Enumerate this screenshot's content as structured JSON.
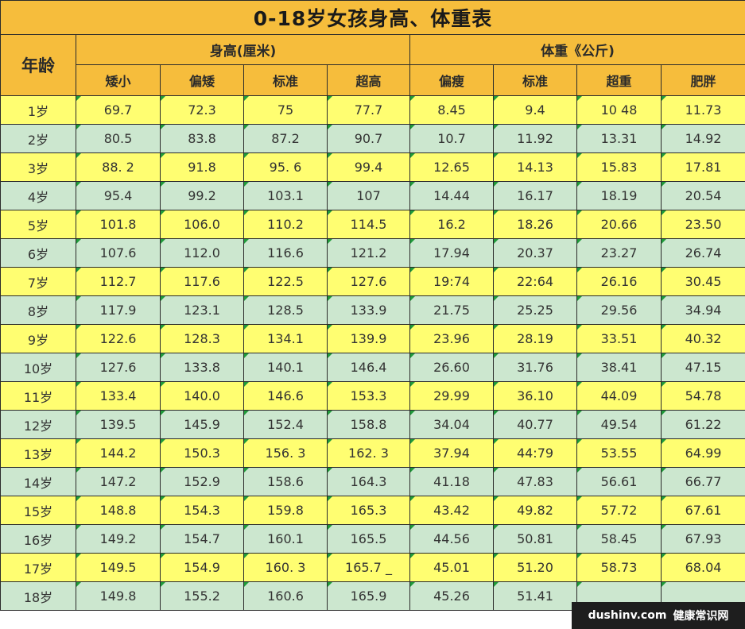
{
  "title": "0-18岁女孩身高、体重表",
  "header": {
    "age_label": "年龄",
    "height_group": "身高(厘米)",
    "weight_group": "体重《公斤)",
    "height_cols": [
      "矮小",
      "偏矮",
      "标准",
      "超高"
    ],
    "weight_cols": [
      "偏瘦",
      "标准",
      "超重",
      "肥胖"
    ]
  },
  "rows": [
    {
      "age": "1岁",
      "h": [
        "69.7",
        "72.3",
        "75",
        "77.7"
      ],
      "w": [
        "8.45",
        "9.4",
        "10 48",
        "11.73"
      ]
    },
    {
      "age": "2岁",
      "h": [
        "80.5",
        "83.8",
        "87.2",
        "90.7"
      ],
      "w": [
        "10.7",
        "11.92",
        "13.31",
        "14.92"
      ]
    },
    {
      "age": "3岁",
      "h": [
        "88. 2",
        "91.8",
        "95. 6",
        "99.4"
      ],
      "w": [
        "12.65",
        "14.13",
        "15.83",
        "17.81"
      ]
    },
    {
      "age": "4岁",
      "h": [
        "95.4",
        "99.2",
        "103.1",
        "107"
      ],
      "w": [
        "14.44",
        "16.17",
        "18.19",
        "20.54"
      ]
    },
    {
      "age": "5岁",
      "h": [
        "101.8",
        "106.0",
        "110.2",
        "114.5"
      ],
      "w": [
        "16.2",
        "18.26",
        "20.66",
        "23.50"
      ]
    },
    {
      "age": "6岁",
      "h": [
        "107.6",
        "112.0",
        "116.6",
        "121.2"
      ],
      "w": [
        "17.94",
        "20.37",
        "23.27",
        "26.74"
      ]
    },
    {
      "age": "7岁",
      "h": [
        "112.7",
        "117.6",
        "122.5",
        "127.6"
      ],
      "w": [
        "19:74",
        "22:64",
        "26.16",
        "30.45"
      ]
    },
    {
      "age": "8岁",
      "h": [
        "117.9",
        "123.1",
        "128.5",
        "133.9"
      ],
      "w": [
        "21.75",
        "25.25",
        "29.56",
        "34.94"
      ]
    },
    {
      "age": "9岁",
      "h": [
        "122.6",
        "128.3",
        "134.1",
        "139.9"
      ],
      "w": [
        "23.96",
        "28.19",
        "33.51",
        "40.32"
      ]
    },
    {
      "age": "10岁",
      "h": [
        "127.6",
        "133.8",
        "140.1",
        "146.4"
      ],
      "w": [
        "26.60",
        "31.76",
        "38.41",
        "47.15"
      ]
    },
    {
      "age": "11岁",
      "h": [
        "133.4",
        "140.0",
        "146.6",
        "153.3"
      ],
      "w": [
        "29.99",
        "36.10",
        "44.09",
        "54.78"
      ]
    },
    {
      "age": "12岁",
      "h": [
        "139.5",
        "145.9",
        "152.4",
        "158.8"
      ],
      "w": [
        "34.04",
        "40.77",
        "49.54",
        "61.22"
      ]
    },
    {
      "age": "13岁",
      "h": [
        "144.2",
        "150.3",
        "156. 3",
        "162. 3"
      ],
      "w": [
        "37.94",
        "44:79",
        "53.55",
        "64.99"
      ]
    },
    {
      "age": "14岁",
      "h": [
        "147.2",
        "152.9",
        "158.6",
        "164.3"
      ],
      "w": [
        "41.18",
        "47.83",
        "56.61",
        "66.77"
      ]
    },
    {
      "age": "15岁",
      "h": [
        "148.8",
        "154.3",
        "159.8",
        "165.3"
      ],
      "w": [
        "43.42",
        "49.82",
        "57.72",
        "67.61"
      ]
    },
    {
      "age": "16岁",
      "h": [
        "149.2",
        "154.7",
        "160.1",
        "165.5"
      ],
      "w": [
        "44.56",
        "50.81",
        "58.45",
        "67.93"
      ]
    },
    {
      "age": "17岁",
      "h": [
        "149.5",
        "154.9",
        "160. 3",
        "165.7 _"
      ],
      "w": [
        "45.01",
        "51.20",
        "58.73",
        "68.04"
      ]
    },
    {
      "age": "18岁",
      "h": [
        "149.8",
        "155.2",
        "160.6",
        "165.9"
      ],
      "w": [
        "45.26",
        "51.41",
        "",
        ""
      ]
    }
  ],
  "watermark": {
    "site": "dushinv.com",
    "label": "健康常识网"
  }
}
